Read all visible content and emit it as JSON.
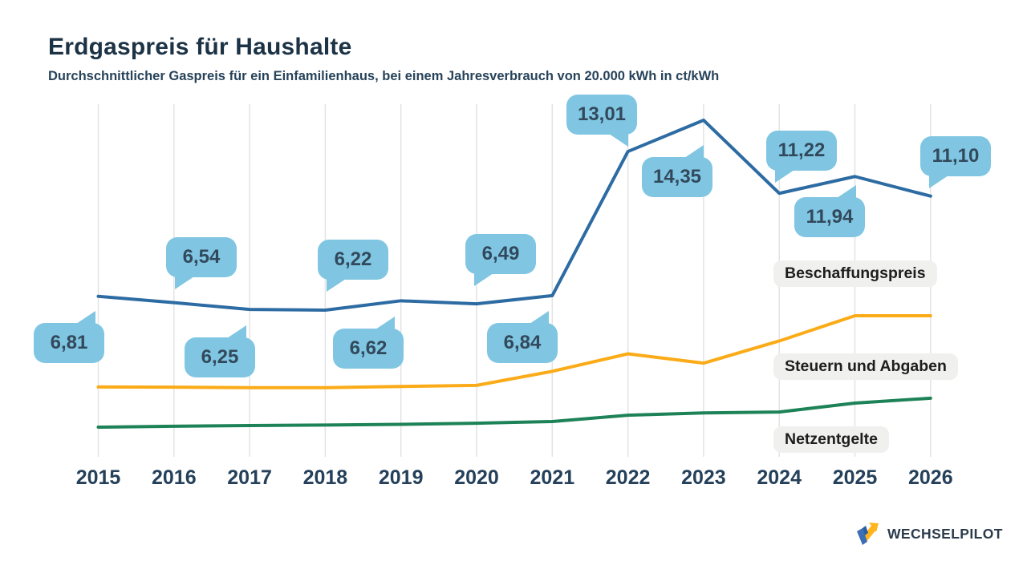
{
  "header": {
    "title": "Erdgaspreis für Haushalte",
    "subtitle": "Durchschnittlicher Gaspreis für ein Einfamilienhaus, bei einem Jahresverbrauch von 20.000 kWh in ct/kWh"
  },
  "chart_data": {
    "type": "line",
    "x": [
      "2015",
      "2016",
      "2017",
      "2018",
      "2019",
      "2020",
      "2021",
      "2022",
      "2023",
      "2024",
      "2025",
      "2026"
    ],
    "series": [
      {
        "name": "Beschaffungspreis",
        "color": "#2d6ba3",
        "values": [
          6.81,
          6.54,
          6.25,
          6.22,
          6.62,
          6.49,
          6.84,
          13.01,
          14.35,
          11.22,
          11.94,
          11.1
        ]
      },
      {
        "name": "Steuern und Abgaben",
        "color": "#fbab18",
        "values": [
          2.93,
          2.92,
          2.9,
          2.9,
          2.95,
          3.0,
          3.6,
          4.35,
          3.95,
          4.9,
          5.98,
          5.98
        ]
      },
      {
        "name": "Netzentgelte",
        "color": "#1d8257",
        "values": [
          1.21,
          1.25,
          1.28,
          1.3,
          1.33,
          1.38,
          1.45,
          1.72,
          1.82,
          1.86,
          2.24,
          2.45
        ]
      }
    ],
    "title": "Erdgaspreis für Haushalte",
    "xlabel": "",
    "ylabel": "ct/kWh",
    "ylim": [
      0,
      15.1
    ],
    "grid": "vertical-only",
    "legend_position": "inline-right"
  },
  "callouts": [
    {
      "year": "2015",
      "value": "6,81"
    },
    {
      "year": "2016",
      "value": "6,54"
    },
    {
      "year": "2017",
      "value": "6,25"
    },
    {
      "year": "2018",
      "value": "6,22"
    },
    {
      "year": "2019",
      "value": "6,62"
    },
    {
      "year": "2020",
      "value": "6,49"
    },
    {
      "year": "2021",
      "value": "6,84"
    },
    {
      "year": "2022",
      "value": "13,01"
    },
    {
      "year": "2023",
      "value": "14,35"
    },
    {
      "year": "2024",
      "value": "11,22"
    },
    {
      "year": "2025",
      "value": "11,94"
    },
    {
      "year": "2026",
      "value": "11,10"
    }
  ],
  "legend": {
    "items": [
      "Beschaffungspreis",
      "Steuern und Abgaben",
      "Netzentgelte"
    ]
  },
  "footer": {
    "logo_text": "WECHSELPILOT"
  },
  "colors": {
    "beschaffungspreis": "#2d6ba3",
    "steuern_und_abgaben": "#fbab18",
    "netzentgelte": "#1d8257",
    "callout_bubble": "#80c6e2",
    "gridline": "#e3e3e3",
    "title_text": "#1c3346"
  }
}
